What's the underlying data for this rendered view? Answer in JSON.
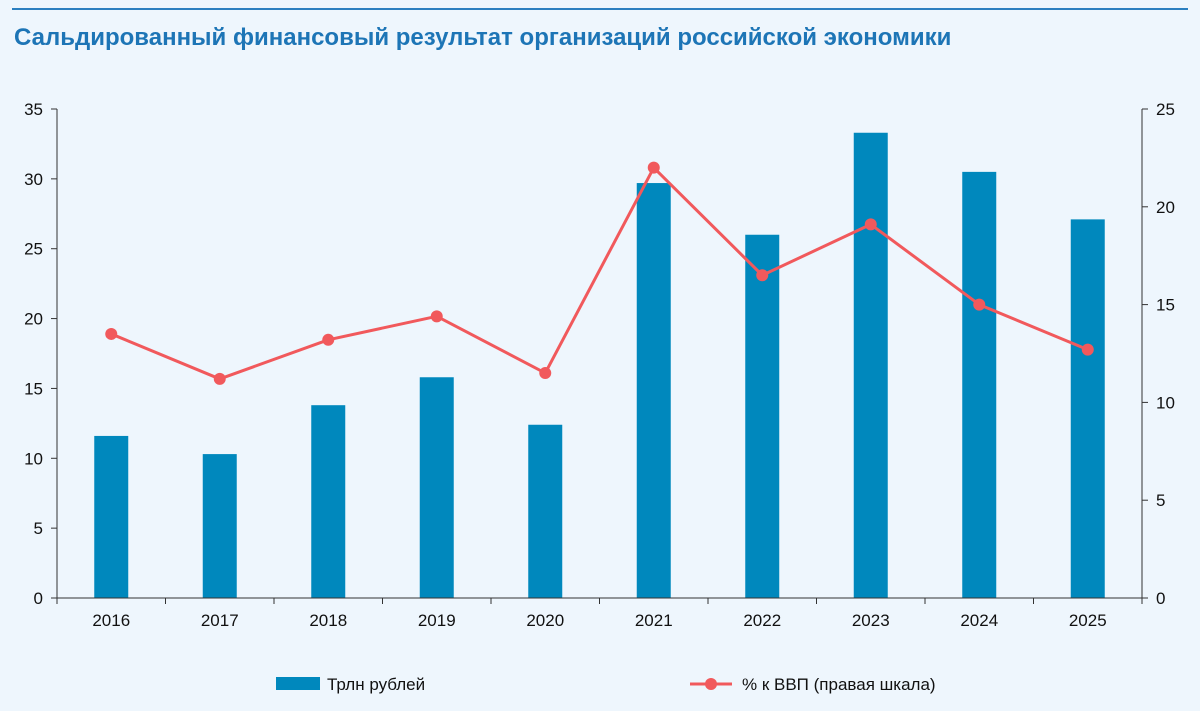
{
  "title": "Сальдированный финансовый результат организаций российской экономики",
  "colors": {
    "background": "#eef6fd",
    "title": "#1d75b6",
    "bar": "#0088bd",
    "line": "#f1595c",
    "axis": "#333333"
  },
  "chart_data": {
    "type": "bar",
    "categories": [
      "2016",
      "2017",
      "2018",
      "2019",
      "2020",
      "2021",
      "2022",
      "2023",
      "2024",
      "2025"
    ],
    "series": [
      {
        "name": "Трлн рублей",
        "type": "bar",
        "axis": "left",
        "values": [
          11.6,
          10.3,
          13.8,
          15.8,
          12.4,
          29.7,
          26.0,
          33.3,
          30.5,
          27.1
        ]
      },
      {
        "name": "% к ВВП (правая шкала)",
        "type": "line",
        "axis": "right",
        "values": [
          13.5,
          11.2,
          13.2,
          14.4,
          11.5,
          22.0,
          16.5,
          19.1,
          15.0,
          12.7
        ]
      }
    ],
    "y_left": {
      "min": 0,
      "max": 35,
      "ticks": [
        "0",
        "5",
        "10",
        "15",
        "20",
        "25",
        "30",
        "35"
      ]
    },
    "y_right": {
      "min": 0,
      "max": 25,
      "ticks": [
        "0",
        "5",
        "10",
        "15",
        "20",
        "25"
      ]
    },
    "grid": false,
    "legend_position": "bottom"
  }
}
